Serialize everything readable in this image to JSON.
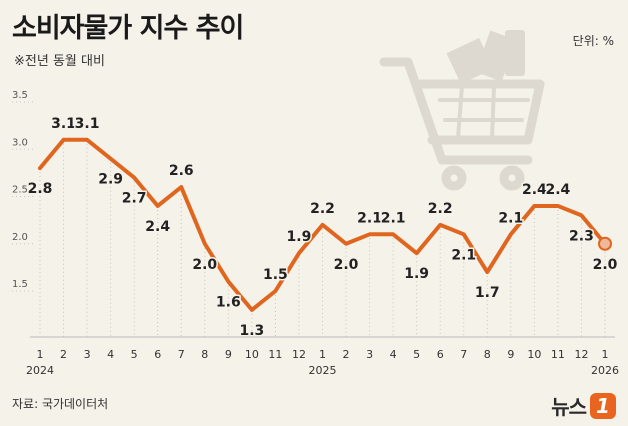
{
  "header": {
    "title": "소비자물가 지수 추이",
    "subtitle": "※전년 동월 대비",
    "unit": "단위: %"
  },
  "footer": {
    "source": "자료: 국가데이터처",
    "logo_text": "뉴스",
    "logo_badge": "1"
  },
  "colors": {
    "line": "#e0661f",
    "background": "#f5f2ea",
    "grid": "#c8c5be",
    "cart": "#ddd9d1"
  },
  "decorations": {
    "icon": "shopping-cart-icon"
  },
  "chart_data": {
    "type": "line",
    "title": "소비자물가 지수 추이",
    "subtitle": "※전년 동월 대비",
    "ylabel": "단위: %",
    "ylim": [
      1.0,
      3.5
    ],
    "yticks": [
      1.5,
      2.0,
      2.5,
      3.0,
      3.5
    ],
    "grid": "vertical dotted lines",
    "categories": [
      "1",
      "2",
      "3",
      "4",
      "5",
      "6",
      "7",
      "8",
      "9",
      "10",
      "11",
      "12",
      "1",
      "2",
      "3",
      "4",
      "5",
      "6",
      "7",
      "8",
      "9",
      "10",
      "11",
      "12",
      "1"
    ],
    "year_labels": [
      {
        "index": 0,
        "label": "2024"
      },
      {
        "index": 12,
        "label": "2025"
      },
      {
        "index": 24,
        "label": "2026"
      }
    ],
    "series": [
      {
        "values": [
          2.8,
          3.1,
          3.1,
          2.9,
          2.7,
          2.4,
          2.6,
          2.0,
          1.6,
          1.3,
          1.5,
          1.9,
          2.2,
          2.0,
          2.1,
          2.1,
          1.9,
          2.2,
          2.1,
          1.7,
          2.1,
          2.4,
          2.4,
          2.3,
          2.0
        ],
        "labels": [
          "2.8",
          "3.1",
          "3.1",
          "2.9",
          "2.7",
          "2.4",
          "2.6",
          "2.0",
          "1.6",
          "1.3",
          "1.5",
          "1.9",
          "2.2",
          "2.0",
          "2.1",
          "2.1",
          "1.9",
          "2.2",
          "2.1",
          "1.7",
          "2.1",
          "2.4",
          "2.4",
          "2.3",
          "2.0"
        ]
      }
    ]
  }
}
